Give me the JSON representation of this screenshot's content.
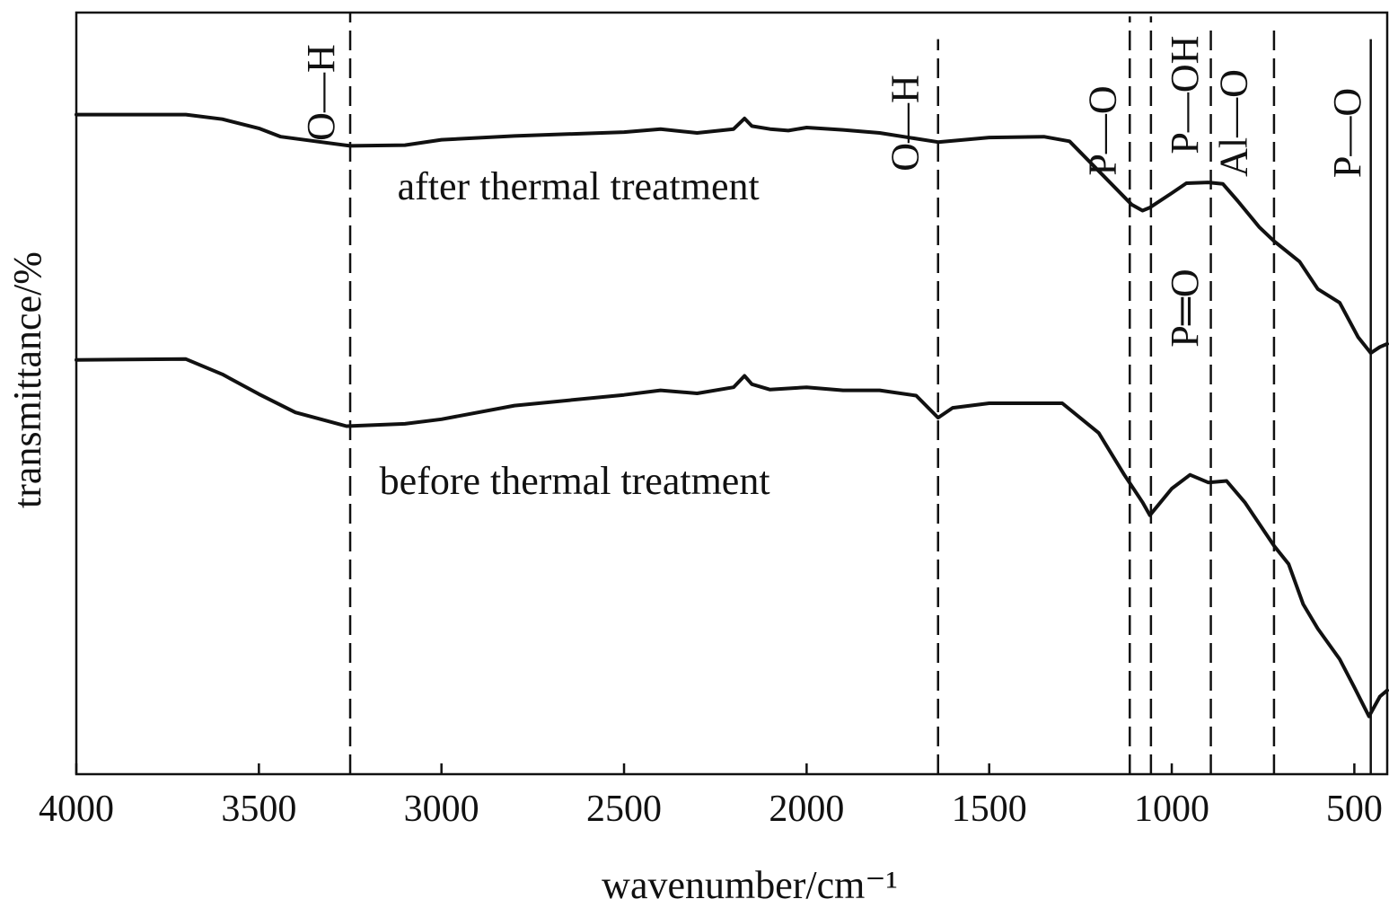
{
  "chart_data": {
    "type": "line",
    "title": "",
    "xlabel": "wavenumber/cm⁻¹",
    "ylabel": "transmittance/%",
    "xlim": [
      4000,
      410
    ],
    "x_reversed": true,
    "xticks": [
      4000,
      3500,
      3000,
      2500,
      2000,
      1500,
      1000,
      500
    ],
    "ylim": [
      0,
      100
    ],
    "y_tick_labels": false,
    "grid": false,
    "series": [
      {
        "name": "after thermal treatment",
        "points": [
          [
            4000,
            86.6
          ],
          [
            3700,
            86.6
          ],
          [
            3600,
            86.0
          ],
          [
            3500,
            84.8
          ],
          [
            3440,
            83.7
          ],
          [
            3250,
            82.5
          ],
          [
            3100,
            82.6
          ],
          [
            3000,
            83.3
          ],
          [
            2800,
            83.8
          ],
          [
            2500,
            84.3
          ],
          [
            2400,
            84.7
          ],
          [
            2300,
            84.2
          ],
          [
            2200,
            84.7
          ],
          [
            2170,
            86.1
          ],
          [
            2150,
            85.1
          ],
          [
            2100,
            84.7
          ],
          [
            2050,
            84.5
          ],
          [
            2000,
            84.9
          ],
          [
            1900,
            84.6
          ],
          [
            1800,
            84.2
          ],
          [
            1640,
            83.0
          ],
          [
            1500,
            83.6
          ],
          [
            1350,
            83.7
          ],
          [
            1280,
            83.1
          ],
          [
            1110,
            74.8
          ],
          [
            1080,
            74.0
          ],
          [
            1060,
            74.4
          ],
          [
            1000,
            76.3
          ],
          [
            960,
            77.6
          ],
          [
            900,
            77.7
          ],
          [
            860,
            77.5
          ],
          [
            820,
            75.3
          ],
          [
            760,
            71.8
          ],
          [
            720,
            70.0
          ],
          [
            650,
            67.3
          ],
          [
            600,
            63.7
          ],
          [
            540,
            61.9
          ],
          [
            490,
            57.4
          ],
          [
            455,
            55.3
          ],
          [
            430,
            56.1
          ],
          [
            410,
            56.5
          ]
        ]
      },
      {
        "name": "before thermal treatment",
        "points": [
          [
            4000,
            54.4
          ],
          [
            3700,
            54.5
          ],
          [
            3600,
            52.5
          ],
          [
            3500,
            49.9
          ],
          [
            3400,
            47.5
          ],
          [
            3260,
            45.7
          ],
          [
            3100,
            46.0
          ],
          [
            3000,
            46.6
          ],
          [
            2800,
            48.4
          ],
          [
            2500,
            49.8
          ],
          [
            2400,
            50.4
          ],
          [
            2300,
            50.0
          ],
          [
            2200,
            50.8
          ],
          [
            2170,
            52.3
          ],
          [
            2150,
            51.2
          ],
          [
            2100,
            50.5
          ],
          [
            2000,
            50.8
          ],
          [
            1900,
            50.4
          ],
          [
            1800,
            50.4
          ],
          [
            1700,
            49.7
          ],
          [
            1640,
            46.8
          ],
          [
            1600,
            48.1
          ],
          [
            1500,
            48.7
          ],
          [
            1300,
            48.7
          ],
          [
            1200,
            44.8
          ],
          [
            1130,
            39.3
          ],
          [
            1080,
            35.7
          ],
          [
            1060,
            34.0
          ],
          [
            1000,
            37.5
          ],
          [
            950,
            39.3
          ],
          [
            900,
            38.3
          ],
          [
            850,
            38.5
          ],
          [
            800,
            35.7
          ],
          [
            720,
            30.0
          ],
          [
            680,
            27.6
          ],
          [
            640,
            22.3
          ],
          [
            600,
            19.1
          ],
          [
            540,
            15.1
          ],
          [
            500,
            11.4
          ],
          [
            460,
            7.6
          ],
          [
            430,
            10.2
          ],
          [
            410,
            11.0
          ]
        ]
      }
    ],
    "series_labels": [
      {
        "text": "after thermal treatment",
        "x": 2625,
        "y": 75.5
      },
      {
        "text": "before thermal treatment",
        "x": 2635,
        "y": 36.8
      }
    ],
    "reference_lines": [
      {
        "x": 3250,
        "style": "dashed",
        "ymin": 0,
        "ymax": 100
      },
      {
        "x": 1640,
        "style": "dashed",
        "ymin": 0,
        "ymax": 96.5
      },
      {
        "x": 1115,
        "style": "dashed",
        "ymin": 0,
        "ymax": 99.5
      },
      {
        "x": 1057,
        "style": "dashed",
        "ymin": 0,
        "ymax": 99.5
      },
      {
        "x": 893,
        "style": "dashed",
        "ymin": 0,
        "ymax": 97.8
      },
      {
        "x": 720,
        "style": "dashed",
        "ymin": 0,
        "ymax": 97.8
      },
      {
        "x": 455,
        "style": "solid",
        "ymin": 0,
        "ymax": 96.5
      }
    ],
    "annotations": [
      {
        "text": "O—H",
        "x": 3330,
        "y": 89.5
      },
      {
        "text": "O—H",
        "x": 1730,
        "y": 85.5
      },
      {
        "text": "P—O",
        "x": 1190,
        "y": 84.5
      },
      {
        "text": "P—OH",
        "x": 965,
        "y": 89.2
      },
      {
        "text": "P═O",
        "x": 965,
        "y": 61.2
      },
      {
        "text": "Al—O",
        "x": 830,
        "y": 85.5
      },
      {
        "text": "P—O",
        "x": 520,
        "y": 84.2
      }
    ]
  }
}
